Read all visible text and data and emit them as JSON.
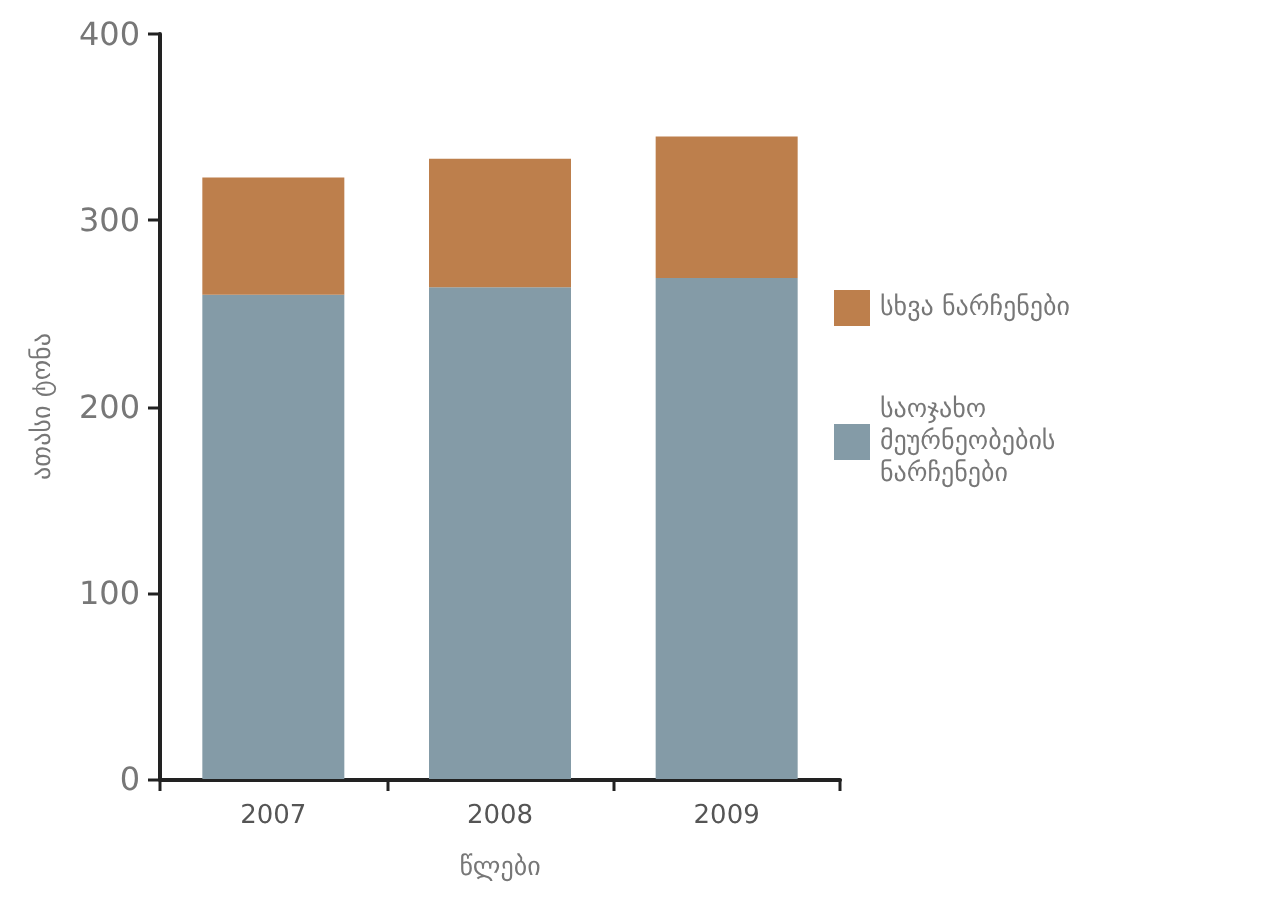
{
  "chart_data": {
    "type": "bar",
    "stacked": true,
    "xlabel": "წლები",
    "ylabel": "ათასი ტონა",
    "categories": [
      "2007",
      "2008",
      "2009"
    ],
    "series": [
      {
        "name": "საოჯახო მეურნეობების ნარჩენები",
        "color": "#849ba7",
        "values": [
          260,
          264,
          269
        ]
      },
      {
        "name": "სხვა ნარჩენები",
        "color": "#bd7f4c",
        "values": [
          63,
          69,
          76
        ]
      }
    ],
    "ylim": [
      0,
      400
    ],
    "yticks": [
      0,
      100,
      200,
      300,
      400
    ],
    "grid": false,
    "legend": "right"
  }
}
